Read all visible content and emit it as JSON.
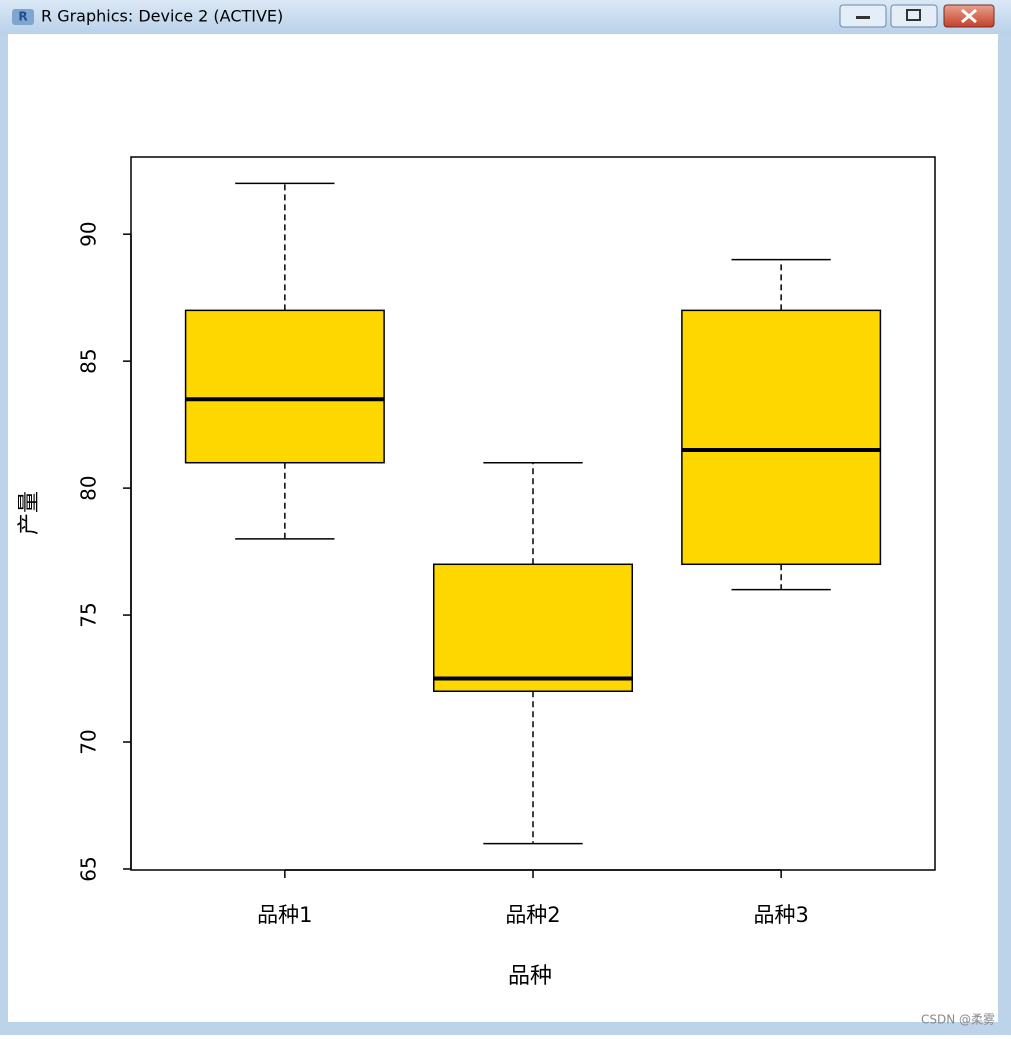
{
  "window": {
    "title": "R Graphics: Device 2 (ACTIVE)"
  },
  "watermark": "CSDN @柔雾",
  "chart_data": {
    "type": "boxplot",
    "x_label": "品种",
    "y_label": "产量",
    "categories": [
      "品种1",
      "品种2",
      "品种3"
    ],
    "min": [
      78,
      66,
      76
    ],
    "q1": [
      81,
      72,
      77
    ],
    "median": [
      83.5,
      72.5,
      81.5
    ],
    "q3": [
      87,
      77,
      87
    ],
    "max": [
      92,
      81,
      89
    ],
    "color": "#ffd700",
    "xlim": [
      0.38,
      3.62
    ],
    "ylim": [
      64.96,
      93.04
    ],
    "yticks": [
      65,
      70,
      75,
      80,
      85,
      90
    ]
  }
}
